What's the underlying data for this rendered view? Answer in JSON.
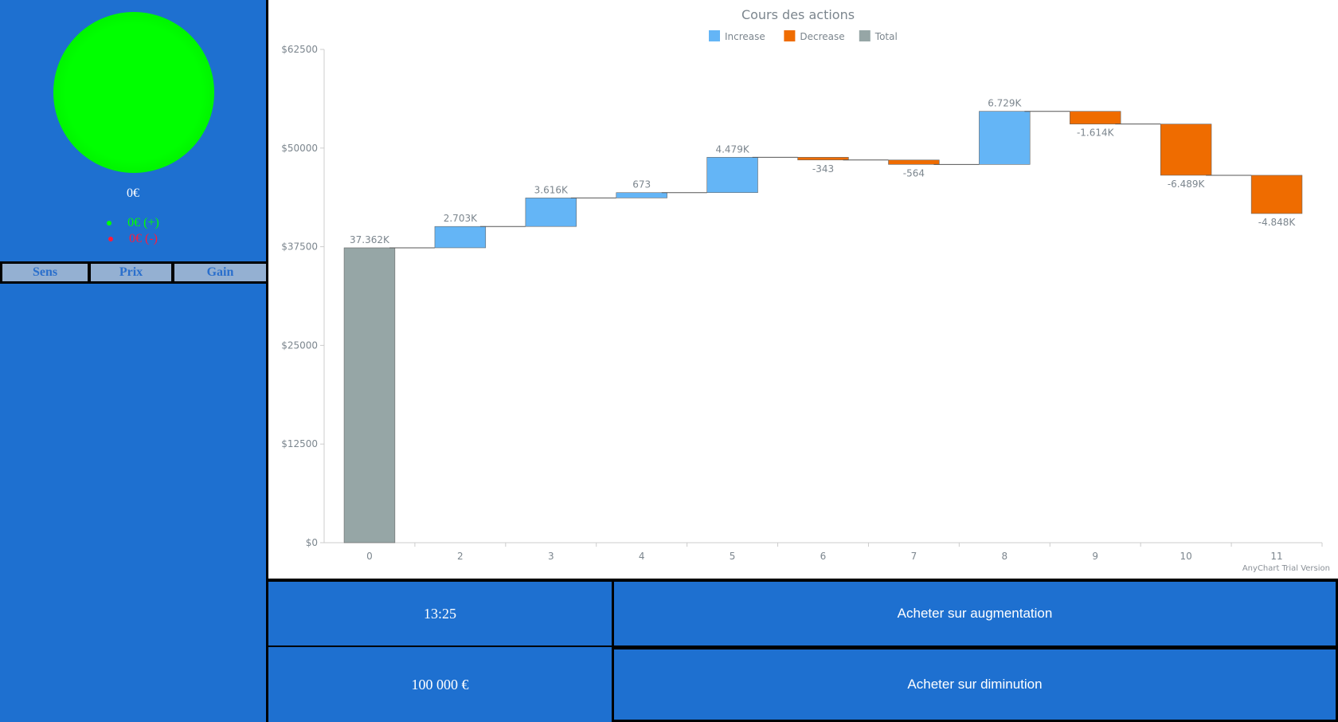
{
  "left": {
    "balance": "0€",
    "gain_plus": "0€ (+)",
    "gain_minus": "0€ (-)",
    "plus_color": "#00ff00",
    "minus_color": "#ff1a3c",
    "columns": [
      "Sens",
      "Prix",
      "Gain"
    ]
  },
  "bottom": {
    "time": "13:25",
    "capital": "100 000 €",
    "buy_up": "Acheter sur augmentation",
    "buy_down": "Acheter sur diminution"
  },
  "watermark": "AnyChart Trial Version",
  "chart_data": {
    "type": "waterfall",
    "title": "Cours des actions",
    "legend": {
      "placement": "top",
      "items": [
        {
          "name": "Increase",
          "color": "#64b5f6"
        },
        {
          "name": "Decrease",
          "color": "#ef6c00"
        },
        {
          "name": "Total",
          "color": "#96a6a6"
        }
      ]
    },
    "categories": [
      "0",
      "2",
      "3",
      "4",
      "5",
      "6",
      "7",
      "8",
      "9",
      "10",
      "11"
    ],
    "values": [
      37362,
      2703,
      3616,
      673,
      4479,
      -343,
      -564,
      6729,
      -1614,
      -6489,
      -4848
    ],
    "labels": [
      "37.362K",
      "2.703K",
      "3.616K",
      "673",
      "4.479K",
      "-343",
      "-564",
      "6.729K",
      "-1.614K",
      "-6.489K",
      "-4.848K"
    ],
    "first_is_total": true,
    "ylim": [
      0,
      62500
    ],
    "yticks": [
      0,
      12500,
      25000,
      37500,
      50000,
      62500
    ],
    "ytick_labels": [
      "$0",
      "$12500",
      "$25000",
      "$37500",
      "$50000",
      "$62500"
    ]
  }
}
